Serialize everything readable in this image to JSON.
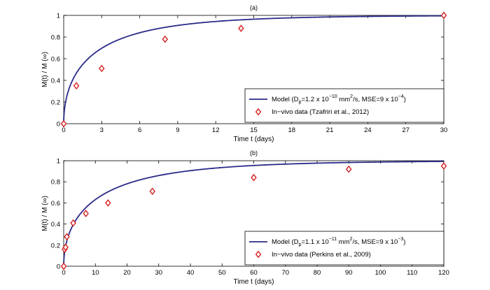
{
  "chart_data": [
    {
      "type": "line",
      "panel_label": "(a)",
      "xlabel": "Time t (days)",
      "ylabel": "M(t) / M (∞)",
      "xlim": [
        0,
        30
      ],
      "ylim": [
        0,
        1
      ],
      "xticks": [
        0,
        3,
        6,
        9,
        12,
        15,
        18,
        21,
        24,
        27,
        30
      ],
      "yticks": [
        0,
        0.2,
        0.4,
        0.6,
        0.8,
        1
      ],
      "model": {
        "legend_prefix": "Model  (D",
        "legend_sub": "p",
        "legend_mid": "=1.2 x 10",
        "legend_exp": "−10",
        "legend_rest": " mm",
        "legend_unit_sup": "2",
        "legend_tail": "/s, MSE=9 x 10",
        "legend_tail_exp": "−4",
        "legend_close": ")",
        "curve_rate": 0.2345,
        "color": "#2a2a8a"
      },
      "series": [
        {
          "name": "In−vivo data (Tzafriri et al., 2012)",
          "marker": "diamond",
          "color": "#d62020",
          "x": [
            0,
            1,
            3,
            8,
            14,
            30
          ],
          "y": [
            0.0,
            0.35,
            0.51,
            0.78,
            0.88,
            1.0
          ]
        }
      ]
    },
    {
      "type": "line",
      "panel_label": "(b)",
      "xlabel": "Time t (days)",
      "ylabel": "M(t) / M (∞)",
      "xlim": [
        0,
        120
      ],
      "ylim": [
        0,
        1
      ],
      "xticks": [
        0,
        10,
        20,
        30,
        40,
        50,
        60,
        70,
        80,
        90,
        100,
        110,
        120
      ],
      "yticks": [
        0,
        0.2,
        0.4,
        0.6,
        0.8,
        1
      ],
      "model": {
        "legend_prefix": "Model (D",
        "legend_sub": "p",
        "legend_mid": "=1.1 x 10",
        "legend_exp": "−11",
        "legend_rest": " mm",
        "legend_unit_sup": "2",
        "legend_tail": "/s, MSE=9 x 10",
        "legend_tail_exp": "−3",
        "legend_close": ")",
        "curve_rate": 0.0523,
        "color": "#2a2a8a"
      },
      "series": [
        {
          "name": "In−vivo data (Perkins et al., 2009)",
          "marker": "diamond",
          "color": "#d62020",
          "x": [
            0,
            0.3,
            0.6,
            1,
            3,
            7,
            14,
            28,
            60,
            90,
            120
          ],
          "y": [
            0.0,
            0.16,
            0.18,
            0.28,
            0.41,
            0.5,
            0.6,
            0.71,
            0.84,
            0.92,
            0.95
          ]
        }
      ]
    }
  ]
}
